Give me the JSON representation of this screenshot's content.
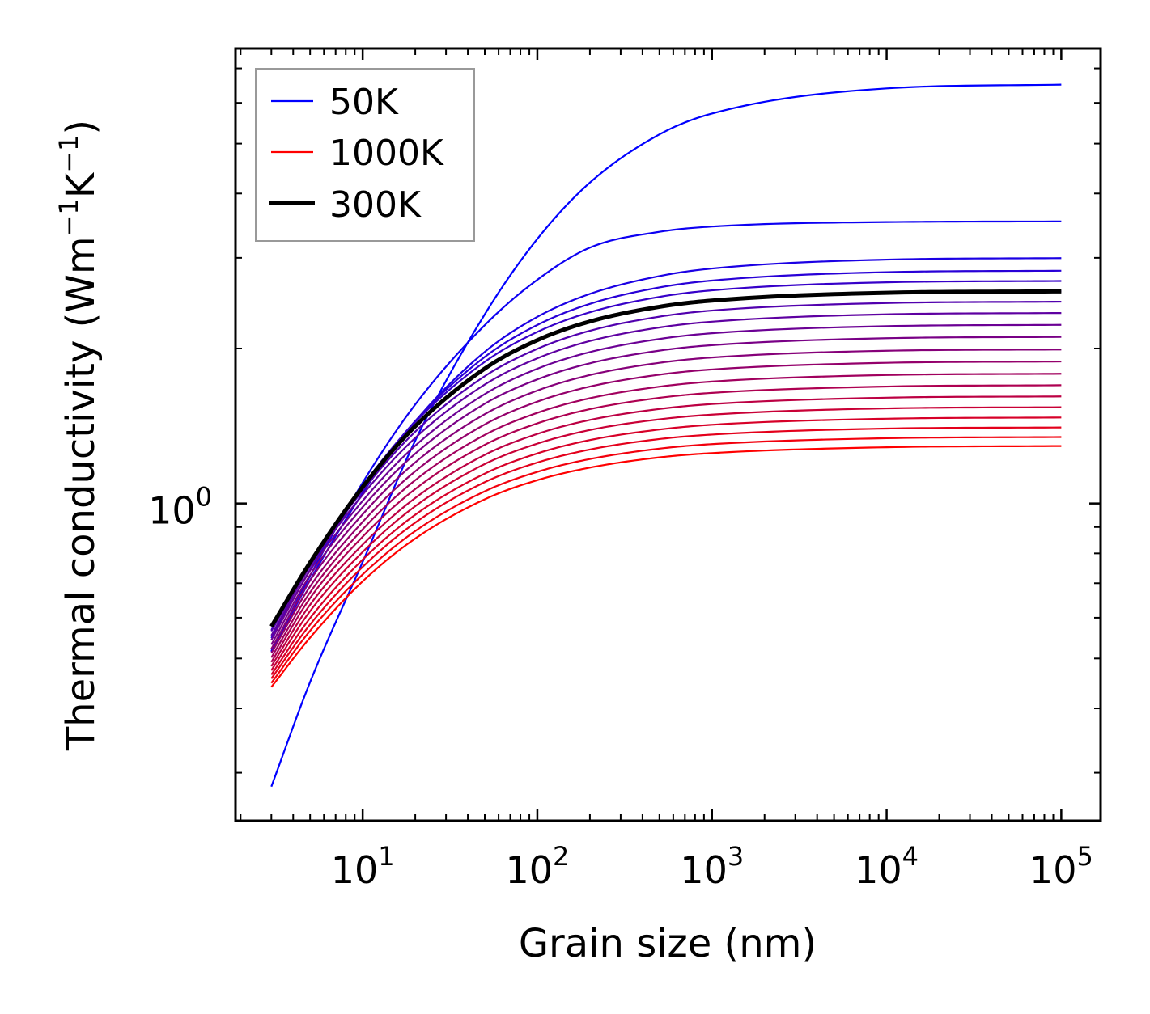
{
  "chart_data": {
    "type": "line",
    "title": "",
    "xlabel": "Grain size (nm)",
    "ylabel": {
      "prefix": "Thermal conductivity (Wm",
      "sup1": "−1",
      "mid": "K",
      "sup2": "−1",
      "suffix": ")"
    },
    "xscale": "log",
    "yscale": "log",
    "xlim": [
      1.87,
      168000
    ],
    "ylim": [
      0.242,
      7.65
    ],
    "grid": false,
    "x_ticks": [
      {
        "value": 10,
        "base": "10",
        "exp": "1"
      },
      {
        "value": 100,
        "base": "10",
        "exp": "2"
      },
      {
        "value": 1000,
        "base": "10",
        "exp": "3"
      },
      {
        "value": 10000,
        "base": "10",
        "exp": "4"
      },
      {
        "value": 100000,
        "base": "10",
        "exp": "5"
      }
    ],
    "y_ticks": [
      {
        "value": 1,
        "base": "10",
        "exp": "0"
      }
    ],
    "legend": {
      "position": "top-left",
      "entries": [
        {
          "label": "50K",
          "color": "#0000ff",
          "weight": "thin"
        },
        {
          "label": "1000K",
          "color": "#ff0000",
          "weight": "thin"
        },
        {
          "label": "300K",
          "color": "#000000",
          "weight": "thick"
        }
      ]
    },
    "color_start": "#0000ff",
    "color_end": "#ff0000",
    "highlight_series": "300K",
    "highlight_color": "#000000",
    "x": [
      3,
      5,
      10,
      20,
      50,
      100,
      200,
      500,
      1000,
      10000,
      100000
    ],
    "series": [
      {
        "name": "50K",
        "temperature": 50,
        "values": [
          0.282,
          0.45,
          0.77,
          1.325,
          2.33,
          3.265,
          4.2,
          5.21,
          5.72,
          6.4,
          6.51
        ]
      },
      {
        "name": "100K",
        "temperature": 100,
        "values": [
          0.517,
          0.724,
          1.098,
          1.557,
          2.22,
          2.72,
          3.14,
          3.37,
          3.45,
          3.52,
          3.53
        ]
      },
      {
        "name": "150K",
        "temperature": 150,
        "values": [
          0.515,
          0.71,
          1.048,
          1.444,
          1.97,
          2.304,
          2.553,
          2.765,
          2.86,
          2.976,
          2.996
        ]
      },
      {
        "name": "200K",
        "temperature": 200,
        "values": [
          0.548,
          0.743,
          1.072,
          1.446,
          1.926,
          2.222,
          2.442,
          2.628,
          2.71,
          2.814,
          2.832
        ]
      },
      {
        "name": "250K",
        "temperature": 250,
        "values": [
          0.568,
          0.763,
          1.083,
          1.439,
          1.884,
          2.154,
          2.352,
          2.519,
          2.594,
          2.689,
          2.705
        ]
      },
      {
        "name": "300K",
        "temperature": 300,
        "values": [
          0.577,
          0.768,
          1.077,
          1.413,
          1.828,
          2.076,
          2.257,
          2.41,
          2.478,
          2.566,
          2.582
        ]
      },
      {
        "name": "350K",
        "temperature": 350,
        "values": [
          0.565,
          0.763,
          1.06,
          1.379,
          1.767,
          1.997,
          2.165,
          2.306,
          2.37,
          2.451,
          2.466
        ]
      },
      {
        "name": "400K",
        "temperature": 400,
        "values": [
          0.554,
          0.755,
          1.04,
          1.341,
          1.702,
          1.914,
          2.068,
          2.197,
          2.255,
          2.33,
          2.344
        ]
      },
      {
        "name": "450K",
        "temperature": 450,
        "values": [
          0.543,
          0.741,
          1.012,
          1.295,
          1.631,
          1.827,
          1.968,
          2.087,
          2.141,
          2.21,
          2.223
        ]
      },
      {
        "name": "500K",
        "temperature": 500,
        "values": [
          0.532,
          0.726,
          0.984,
          1.25,
          1.562,
          1.742,
          1.872,
          1.981,
          2.03,
          2.094,
          2.106
        ]
      },
      {
        "name": "550K",
        "temperature": 550,
        "values": [
          0.522,
          0.709,
          0.953,
          1.202,
          1.491,
          1.657,
          1.776,
          1.876,
          1.921,
          1.98,
          1.991
        ]
      },
      {
        "name": "600K",
        "temperature": 600,
        "values": [
          0.512,
          0.69,
          0.921,
          1.155,
          1.424,
          1.577,
          1.687,
          1.779,
          1.821,
          1.876,
          1.887
        ]
      },
      {
        "name": "650K",
        "temperature": 650,
        "values": [
          0.502,
          0.672,
          0.891,
          1.11,
          1.359,
          1.5,
          1.601,
          1.686,
          1.725,
          1.776,
          1.786
        ]
      },
      {
        "name": "700K",
        "temperature": 700,
        "values": [
          0.492,
          0.655,
          0.862,
          1.067,
          1.3,
          1.431,
          1.525,
          1.604,
          1.64,
          1.687,
          1.697
        ]
      },
      {
        "name": "750K",
        "temperature": 750,
        "values": [
          0.483,
          0.636,
          0.832,
          1.025,
          1.243,
          1.365,
          1.453,
          1.526,
          1.56,
          1.605,
          1.614
        ]
      },
      {
        "name": "800K",
        "temperature": 800,
        "values": [
          0.474,
          0.618,
          0.805,
          0.988,
          1.193,
          1.307,
          1.389,
          1.457,
          1.488,
          1.53,
          1.538
        ]
      },
      {
        "name": "850K",
        "temperature": 850,
        "values": [
          0.465,
          0.599,
          0.778,
          0.951,
          1.143,
          1.251,
          1.328,
          1.392,
          1.422,
          1.461,
          1.469
        ]
      },
      {
        "name": "900K",
        "temperature": 900,
        "values": [
          0.457,
          0.582,
          0.753,
          0.918,
          1.1,
          1.201,
          1.273,
          1.334,
          1.361,
          1.398,
          1.405
        ]
      },
      {
        "name": "950K",
        "temperature": 950,
        "values": [
          0.448,
          0.566,
          0.728,
          0.884,
          1.056,
          1.152,
          1.22,
          1.278,
          1.304,
          1.339,
          1.346
        ]
      },
      {
        "name": "1000K",
        "temperature": 1000,
        "values": [
          0.44,
          0.549,
          0.706,
          0.855,
          1.019,
          1.11,
          1.174,
          1.229,
          1.253,
          1.286,
          1.293
        ]
      }
    ]
  }
}
